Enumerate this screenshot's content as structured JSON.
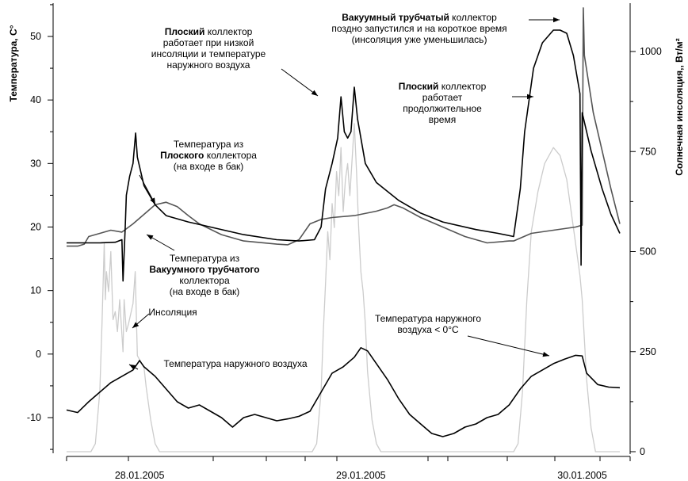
{
  "chart_data": {
    "type": "line",
    "title": "",
    "y_left": {
      "label": "Температура, С°",
      "range": [
        -15,
        55
      ],
      "ticks": [
        50,
        40,
        30,
        20,
        10,
        0,
        -10
      ]
    },
    "y_right": {
      "label": "Солнечная инсоляция,, Вт/м²",
      "range": [
        0,
        1120
      ],
      "ticks": [
        1000,
        750,
        500,
        250,
        0
      ]
    },
    "x": {
      "range_days": [
        0,
        2.5
      ],
      "date_labels": [
        {
          "text": "28.01.2005",
          "t": 0.33
        },
        {
          "text": "29.01.2005",
          "t": 1.33
        },
        {
          "text": "30.01.2005",
          "t": 2.33
        }
      ]
    },
    "series": [
      {
        "id": "flat",
        "axis": "left",
        "color": "#000000",
        "points": [
          [
            0.0,
            17.5
          ],
          [
            0.15,
            17.5
          ],
          [
            0.22,
            17.6
          ],
          [
            0.25,
            18.0
          ],
          [
            0.255,
            11.5
          ],
          [
            0.265,
            20
          ],
          [
            0.27,
            25
          ],
          [
            0.285,
            28
          ],
          [
            0.3,
            30
          ],
          [
            0.312,
            34.8
          ],
          [
            0.32,
            31
          ],
          [
            0.35,
            26.5
          ],
          [
            0.4,
            23.5
          ],
          [
            0.45,
            21.8
          ],
          [
            0.55,
            20.8
          ],
          [
            0.65,
            20.0
          ],
          [
            0.8,
            18.8
          ],
          [
            0.95,
            18.0
          ],
          [
            1.05,
            17.8
          ],
          [
            1.12,
            18.0
          ],
          [
            1.15,
            20
          ],
          [
            1.17,
            26
          ],
          [
            1.2,
            30
          ],
          [
            1.225,
            34
          ],
          [
            1.24,
            40.5
          ],
          [
            1.255,
            35
          ],
          [
            1.27,
            34
          ],
          [
            1.285,
            35
          ],
          [
            1.3,
            42
          ],
          [
            1.315,
            37
          ],
          [
            1.35,
            30
          ],
          [
            1.4,
            27
          ],
          [
            1.5,
            24.2
          ],
          [
            1.6,
            22.2
          ],
          [
            1.7,
            20.8
          ],
          [
            1.85,
            19.6
          ],
          [
            1.95,
            19.0
          ],
          [
            2.02,
            18.5
          ],
          [
            2.05,
            26
          ],
          [
            2.07,
            35
          ],
          [
            2.09,
            40
          ],
          [
            2.11,
            45
          ],
          [
            2.15,
            49
          ],
          [
            2.2,
            51
          ],
          [
            2.23,
            51
          ],
          [
            2.26,
            50.5
          ],
          [
            2.29,
            47
          ],
          [
            2.32,
            41
          ],
          [
            2.325,
            14
          ],
          [
            2.33,
            38
          ],
          [
            2.37,
            32
          ],
          [
            2.42,
            26
          ],
          [
            2.46,
            22
          ],
          [
            2.5,
            19
          ]
        ]
      },
      {
        "id": "vacuum",
        "axis": "left",
        "color": "#555555",
        "points": [
          [
            0.0,
            17.0
          ],
          [
            0.05,
            17.0
          ],
          [
            0.08,
            17.3
          ],
          [
            0.1,
            18.5
          ],
          [
            0.15,
            19.0
          ],
          [
            0.2,
            19.5
          ],
          [
            0.25,
            19.2
          ],
          [
            0.3,
            20.5
          ],
          [
            0.35,
            22.0
          ],
          [
            0.4,
            23.5
          ],
          [
            0.45,
            23.9
          ],
          [
            0.5,
            23.2
          ],
          [
            0.55,
            21.8
          ],
          [
            0.6,
            20.5
          ],
          [
            0.7,
            18.8
          ],
          [
            0.8,
            17.8
          ],
          [
            0.95,
            17.3
          ],
          [
            1.0,
            17.2
          ],
          [
            1.05,
            18.0
          ],
          [
            1.1,
            20.5
          ],
          [
            1.15,
            21.2
          ],
          [
            1.2,
            21.5
          ],
          [
            1.3,
            21.8
          ],
          [
            1.4,
            22.5
          ],
          [
            1.45,
            23.0
          ],
          [
            1.48,
            23.5
          ],
          [
            1.52,
            23.0
          ],
          [
            1.6,
            21.5
          ],
          [
            1.7,
            20.0
          ],
          [
            1.8,
            18.5
          ],
          [
            1.9,
            17.5
          ],
          [
            2.0,
            17.8
          ],
          [
            2.02,
            17.8
          ],
          [
            2.1,
            19.0
          ],
          [
            2.2,
            19.5
          ],
          [
            2.3,
            20.0
          ],
          [
            2.33,
            20.3
          ],
          [
            2.335,
            54.5
          ],
          [
            2.34,
            47
          ],
          [
            2.38,
            38
          ],
          [
            2.42,
            32
          ],
          [
            2.46,
            26
          ],
          [
            2.5,
            20.5
          ]
        ]
      },
      {
        "id": "insolation",
        "axis": "right",
        "color": "#cccccc",
        "points": [
          [
            0.0,
            0
          ],
          [
            0.11,
            0
          ],
          [
            0.13,
            20
          ],
          [
            0.15,
            150
          ],
          [
            0.16,
            320
          ],
          [
            0.17,
            520
          ],
          [
            0.175,
            380
          ],
          [
            0.18,
            450
          ],
          [
            0.19,
            400
          ],
          [
            0.2,
            500
          ],
          [
            0.21,
            330
          ],
          [
            0.22,
            350
          ],
          [
            0.23,
            300
          ],
          [
            0.24,
            380
          ],
          [
            0.255,
            250
          ],
          [
            0.26,
            380
          ],
          [
            0.27,
            300
          ],
          [
            0.28,
            320
          ],
          [
            0.3,
            370
          ],
          [
            0.31,
            450
          ],
          [
            0.32,
            240
          ],
          [
            0.33,
            230
          ],
          [
            0.35,
            210
          ],
          [
            0.36,
            160
          ],
          [
            0.38,
            80
          ],
          [
            0.4,
            20
          ],
          [
            0.42,
            0
          ],
          [
            1.11,
            0
          ],
          [
            1.13,
            20
          ],
          [
            1.15,
            150
          ],
          [
            1.16,
            300
          ],
          [
            1.17,
            420
          ],
          [
            1.18,
            550
          ],
          [
            1.19,
            480
          ],
          [
            1.2,
            620
          ],
          [
            1.21,
            560
          ],
          [
            1.22,
            700
          ],
          [
            1.23,
            640
          ],
          [
            1.24,
            760
          ],
          [
            1.25,
            600
          ],
          [
            1.26,
            680
          ],
          [
            1.27,
            720
          ],
          [
            1.28,
            640
          ],
          [
            1.3,
            820
          ],
          [
            1.31,
            700
          ],
          [
            1.32,
            560
          ],
          [
            1.33,
            450
          ],
          [
            1.34,
            400
          ],
          [
            1.35,
            320
          ],
          [
            1.36,
            200
          ],
          [
            1.38,
            80
          ],
          [
            1.4,
            20
          ],
          [
            1.42,
            0
          ],
          [
            2.02,
            0
          ],
          [
            2.04,
            20
          ],
          [
            2.06,
            150
          ],
          [
            2.08,
            380
          ],
          [
            2.1,
            550
          ],
          [
            2.13,
            650
          ],
          [
            2.16,
            720
          ],
          [
            2.2,
            760
          ],
          [
            2.23,
            740
          ],
          [
            2.26,
            680
          ],
          [
            2.28,
            600
          ],
          [
            2.3,
            520
          ],
          [
            2.32,
            440
          ],
          [
            2.33,
            380
          ],
          [
            2.35,
            180
          ],
          [
            2.37,
            60
          ],
          [
            2.39,
            0
          ],
          [
            2.5,
            0
          ]
        ]
      },
      {
        "id": "outdoor",
        "axis": "left",
        "color": "#000000",
        "points": [
          [
            0.0,
            -8.8
          ],
          [
            0.05,
            -9.2
          ],
          [
            0.1,
            -7.5
          ],
          [
            0.15,
            -6.0
          ],
          [
            0.2,
            -4.5
          ],
          [
            0.25,
            -3.5
          ],
          [
            0.3,
            -2.5
          ],
          [
            0.33,
            -1.0
          ],
          [
            0.35,
            -2.0
          ],
          [
            0.4,
            -3.5
          ],
          [
            0.45,
            -5.5
          ],
          [
            0.5,
            -7.5
          ],
          [
            0.55,
            -8.5
          ],
          [
            0.6,
            -8.0
          ],
          [
            0.65,
            -9.0
          ],
          [
            0.7,
            -10.0
          ],
          [
            0.75,
            -11.5
          ],
          [
            0.8,
            -10.0
          ],
          [
            0.85,
            -9.5
          ],
          [
            0.9,
            -10.0
          ],
          [
            0.95,
            -10.5
          ],
          [
            1.0,
            -10.2
          ],
          [
            1.05,
            -9.8
          ],
          [
            1.1,
            -9.0
          ],
          [
            1.15,
            -6.0
          ],
          [
            1.2,
            -3.0
          ],
          [
            1.25,
            -2.0
          ],
          [
            1.3,
            -0.5
          ],
          [
            1.33,
            1.0
          ],
          [
            1.36,
            0.5
          ],
          [
            1.4,
            -1.5
          ],
          [
            1.45,
            -4.0
          ],
          [
            1.5,
            -7.0
          ],
          [
            1.55,
            -9.5
          ],
          [
            1.6,
            -11.0
          ],
          [
            1.65,
            -12.5
          ],
          [
            1.7,
            -13.0
          ],
          [
            1.75,
            -12.5
          ],
          [
            1.8,
            -11.5
          ],
          [
            1.85,
            -11.0
          ],
          [
            1.9,
            -10.0
          ],
          [
            1.95,
            -9.5
          ],
          [
            2.0,
            -8.0
          ],
          [
            2.05,
            -5.5
          ],
          [
            2.1,
            -3.5
          ],
          [
            2.15,
            -2.5
          ],
          [
            2.2,
            -1.5
          ],
          [
            2.25,
            -0.8
          ],
          [
            2.3,
            -0.2
          ],
          [
            2.33,
            -0.3
          ],
          [
            2.35,
            -3.0
          ],
          [
            2.4,
            -4.8
          ],
          [
            2.45,
            -5.2
          ],
          [
            2.5,
            -5.3
          ]
        ]
      }
    ],
    "annotations": [
      {
        "lines": [
          [
            {
              "t": "Плоский",
              "b": true
            },
            {
              "t": " коллектор"
            }
          ],
          [
            {
              "t": "работает при низкой"
            }
          ],
          [
            {
              "t": "инсоляции и температуре"
            }
          ],
          [
            {
              "t": "наружного воздуха"
            }
          ]
        ]
      },
      {
        "lines": [
          [
            {
              "t": "Вакуумный трубчатый",
              "b": true
            },
            {
              "t": " коллектор"
            }
          ],
          [
            {
              "t": "поздно запустился и на короткое время"
            }
          ],
          [
            {
              "t": "(инсоляция уже уменьшилась)"
            }
          ]
        ]
      },
      {
        "lines": [
          [
            {
              "t": "Плоский",
              "b": true
            },
            {
              "t": " коллектор"
            }
          ],
          [
            {
              "t": "работает"
            }
          ],
          [
            {
              "t": "продолжительное"
            }
          ],
          [
            {
              "t": "время"
            }
          ]
        ]
      },
      {
        "lines": [
          [
            {
              "t": "Температура из"
            }
          ],
          [
            {
              "t": "Плоского",
              "b": true
            },
            {
              "t": " коллектора"
            }
          ],
          [
            {
              "t": "(на входе в бак)"
            }
          ]
        ]
      },
      {
        "lines": [
          [
            {
              "t": "Температура из"
            }
          ],
          [
            {
              "t": "Вакуумного трубчатого",
              "b": true
            }
          ],
          [
            {
              "t": "коллектора"
            }
          ],
          [
            {
              "t": "(на входе в бак)"
            }
          ]
        ]
      },
      {
        "lines": [
          [
            {
              "t": "Инсоляция"
            }
          ]
        ]
      },
      {
        "lines": [
          [
            {
              "t": "Температура наружного воздуха"
            }
          ]
        ]
      },
      {
        "lines": [
          [
            {
              "t": "Температура наружного"
            }
          ],
          [
            {
              "t": "воздуха < 0°C"
            }
          ]
        ]
      }
    ]
  }
}
